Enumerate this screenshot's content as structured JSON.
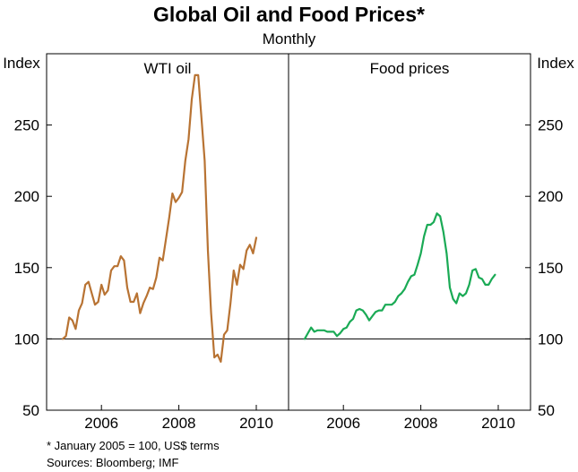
{
  "title": "Global Oil and Food Prices*",
  "subtitle": "Monthly",
  "y_unit_left": "Index",
  "y_unit_right": "Index",
  "footnote": "*    January 2005 = 100, US$ terms",
  "sources": "Sources: Bloomberg; IMF",
  "colors": {
    "oil": "#b87333",
    "food": "#1aaa55",
    "axis": "#000000"
  },
  "chart_data": [
    {
      "type": "line",
      "panel_title": "WTI oil",
      "x_ticks": [
        "2006",
        "2008",
        "2010"
      ],
      "y_ticks": [
        "50",
        "100",
        "150",
        "200",
        "250"
      ],
      "ylim": [
        50,
        300
      ],
      "reference_line": 100,
      "grid": false,
      "series": [
        {
          "x": [
            "2005-01",
            "2005-02",
            "2005-03",
            "2005-04",
            "2005-05",
            "2005-06",
            "2005-07",
            "2005-08",
            "2005-09",
            "2005-10",
            "2005-11",
            "2005-12",
            "2006-01",
            "2006-02",
            "2006-03",
            "2006-04",
            "2006-05",
            "2006-06",
            "2006-07",
            "2006-08",
            "2006-09",
            "2006-10",
            "2006-11",
            "2006-12",
            "2007-01",
            "2007-02",
            "2007-03",
            "2007-04",
            "2007-05",
            "2007-06",
            "2007-07",
            "2007-08",
            "2007-09",
            "2007-10",
            "2007-11",
            "2007-12",
            "2008-01",
            "2008-02",
            "2008-03",
            "2008-04",
            "2008-05",
            "2008-06",
            "2008-07",
            "2008-08",
            "2008-09",
            "2008-10",
            "2008-11",
            "2008-12",
            "2009-01",
            "2009-02",
            "2009-03",
            "2009-04",
            "2009-05",
            "2009-06",
            "2009-07",
            "2009-08",
            "2009-09",
            "2009-10",
            "2009-11",
            "2009-12"
          ],
          "values": [
            100,
            102,
            115,
            113,
            107,
            120,
            125,
            138,
            140,
            132,
            124,
            126,
            138,
            131,
            134,
            148,
            151,
            151,
            158,
            155,
            136,
            126,
            126,
            132,
            118,
            125,
            130,
            136,
            135,
            143,
            157,
            155,
            170,
            185,
            202,
            196,
            199,
            203,
            225,
            240,
            268,
            285,
            285,
            255,
            225,
            162,
            118,
            87,
            89,
            84,
            103,
            106,
            125,
            148,
            138,
            152,
            149,
            162,
            166,
            160
          ],
          "values_tail": [
            171
          ]
        }
      ]
    },
    {
      "type": "line",
      "panel_title": "Food prices",
      "x_ticks": [
        "2006",
        "2008",
        "2010"
      ],
      "y_ticks": [
        "50",
        "100",
        "150",
        "200",
        "250"
      ],
      "ylim": [
        50,
        300
      ],
      "reference_line": 100,
      "grid": false,
      "series": [
        {
          "x": [
            "2005-01",
            "2005-02",
            "2005-03",
            "2005-04",
            "2005-05",
            "2005-06",
            "2005-07",
            "2005-08",
            "2005-09",
            "2005-10",
            "2005-11",
            "2005-12",
            "2006-01",
            "2006-02",
            "2006-03",
            "2006-04",
            "2006-05",
            "2006-06",
            "2006-07",
            "2006-08",
            "2006-09",
            "2006-10",
            "2006-11",
            "2006-12",
            "2007-01",
            "2007-02",
            "2007-03",
            "2007-04",
            "2007-05",
            "2007-06",
            "2007-07",
            "2007-08",
            "2007-09",
            "2007-10",
            "2007-11",
            "2007-12",
            "2008-01",
            "2008-02",
            "2008-03",
            "2008-04",
            "2008-05",
            "2008-06",
            "2008-07",
            "2008-08",
            "2008-09",
            "2008-10",
            "2008-11",
            "2008-12",
            "2009-01",
            "2009-02",
            "2009-03",
            "2009-04",
            "2009-05",
            "2009-06",
            "2009-07",
            "2009-08",
            "2009-09",
            "2009-10",
            "2009-11",
            "2009-12"
          ],
          "values": [
            100,
            104,
            108,
            105,
            106,
            106,
            106,
            105,
            105,
            105,
            102,
            104,
            107,
            108,
            112,
            114,
            120,
            121,
            120,
            117,
            113,
            116,
            119,
            120,
            120,
            124,
            124,
            124,
            126,
            130,
            132,
            135,
            140,
            144,
            145,
            152,
            160,
            172,
            180,
            180,
            182,
            188,
            186,
            175,
            160,
            136,
            128,
            125,
            132,
            130,
            132,
            138,
            148,
            149,
            143,
            142,
            138,
            138,
            142,
            145
          ],
          "values_tail": []
        }
      ]
    }
  ]
}
